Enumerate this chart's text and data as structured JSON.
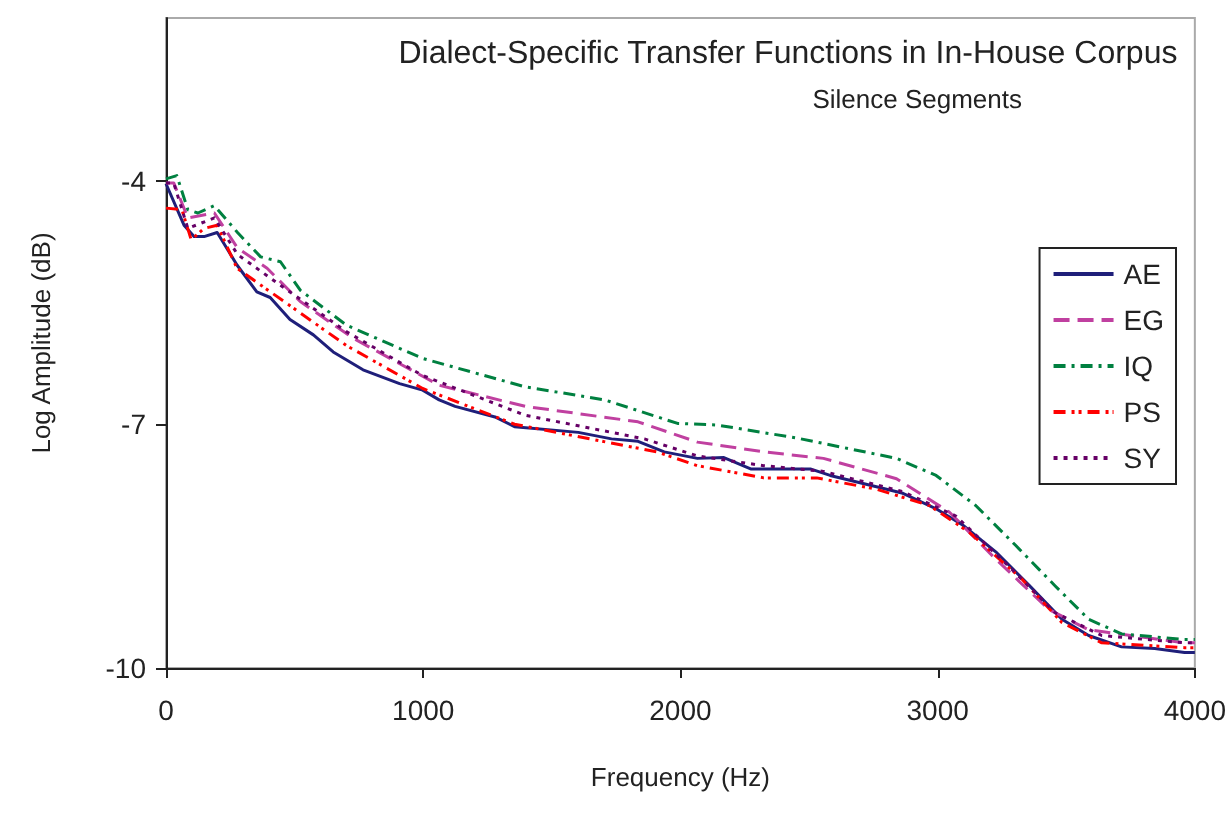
{
  "chart_data": {
    "type": "line",
    "title": "Dialect-Specific Transfer Functions in In-House Corpus",
    "subtitle": "Silence Segments",
    "xlabel": "Frequency (Hz)",
    "ylabel": "Log Amplitude (dB)",
    "xlim": [
      0,
      4000
    ],
    "xticks": [
      0,
      1000,
      2000,
      3000,
      4000
    ],
    "ylim": [
      -10,
      -2
    ],
    "yticks": [
      -10,
      -7,
      -4
    ],
    "grid": false,
    "legend": "right",
    "marker": "none",
    "series": [
      {
        "name": "AE",
        "color": "#1f1f7a",
        "line_style": "solid",
        "x": [
          0,
          70,
          109,
          148,
          199,
          276,
          353,
          405,
          482,
          573,
          650,
          766,
          908,
          998,
          1062,
          1124,
          1279,
          1355,
          1603,
          1732,
          1835,
          1937,
          2066,
          2169,
          2273,
          2505,
          2582,
          2762,
          2865,
          2994,
          3097,
          3226,
          3355,
          3483,
          3587,
          3715,
          3844,
          3960,
          4000
        ],
        "values": [
          -4.04,
          -4.55,
          -4.69,
          -4.69,
          -4.64,
          -5.04,
          -5.37,
          -5.44,
          -5.71,
          -5.9,
          -6.11,
          -6.33,
          -6.5,
          -6.58,
          -6.7,
          -6.78,
          -6.91,
          -7.03,
          -7.1,
          -7.18,
          -7.21,
          -7.34,
          -7.42,
          -7.41,
          -7.55,
          -7.55,
          -7.63,
          -7.77,
          -7.85,
          -8.04,
          -8.24,
          -8.57,
          -8.98,
          -9.4,
          -9.6,
          -9.74,
          -9.76,
          -9.81,
          -9.81
        ]
      },
      {
        "name": "EG",
        "color": "#c040a0",
        "line_style": "dashed",
        "x": [
          0,
          30,
          85,
          188,
          278,
          393,
          522,
          727,
          1062,
          1397,
          1835,
          2066,
          2324,
          2556,
          2840,
          3045,
          3226,
          3432,
          3587,
          3960,
          4000
        ],
        "values": [
          -4.03,
          -4.03,
          -4.46,
          -4.4,
          -4.83,
          -5.08,
          -5.49,
          -5.94,
          -6.52,
          -6.78,
          -6.97,
          -7.22,
          -7.34,
          -7.42,
          -7.67,
          -8.08,
          -8.66,
          -9.28,
          -9.53,
          -9.69,
          -9.69
        ]
      },
      {
        "name": "IQ",
        "color": "#008040",
        "line_style": "dashdot",
        "x": [
          0,
          42,
          85,
          124,
          188,
          278,
          368,
          445,
          522,
          701,
          998,
          1397,
          1706,
          1989,
          2144,
          2453,
          2840,
          2994,
          3148,
          3303,
          3457,
          3587,
          3715,
          3960,
          4000
        ],
        "values": [
          -3.98,
          -3.94,
          -4.36,
          -4.4,
          -4.31,
          -4.64,
          -4.94,
          -5.0,
          -5.35,
          -5.78,
          -6.19,
          -6.54,
          -6.7,
          -6.99,
          -7.01,
          -7.17,
          -7.42,
          -7.63,
          -8.0,
          -8.49,
          -8.99,
          -9.4,
          -9.58,
          -9.65,
          -9.65
        ]
      },
      {
        "name": "PS",
        "color": "#ff0000",
        "line_style": "dashdotdot",
        "x": [
          0,
          62,
          98,
          148,
          199,
          276,
          495,
          701,
          998,
          1355,
          1908,
          2066,
          2324,
          2530,
          2762,
          2968,
          3123,
          3329,
          3483,
          3638,
          3960,
          4000
        ],
        "values": [
          -4.34,
          -4.36,
          -4.73,
          -4.59,
          -4.55,
          -5.08,
          -5.57,
          -6.03,
          -6.56,
          -7.0,
          -7.34,
          -7.51,
          -7.66,
          -7.66,
          -7.8,
          -8.0,
          -8.33,
          -8.91,
          -9.44,
          -9.69,
          -9.75,
          -9.75
        ]
      },
      {
        "name": "SY",
        "color": "#660066",
        "line_style": "dotted",
        "x": [
          0,
          30,
          85,
          188,
          278,
          445,
          701,
          998,
          1397,
          1860,
          2066,
          2324,
          2556,
          2865,
          3071,
          3277,
          3457,
          3638,
          3960,
          4000
        ],
        "values": [
          -4.03,
          -4.03,
          -4.59,
          -4.46,
          -4.91,
          -5.29,
          -5.86,
          -6.4,
          -6.89,
          -7.18,
          -7.39,
          -7.51,
          -7.58,
          -7.83,
          -8.13,
          -8.75,
          -9.32,
          -9.6,
          -9.69,
          -9.69
        ]
      }
    ]
  }
}
